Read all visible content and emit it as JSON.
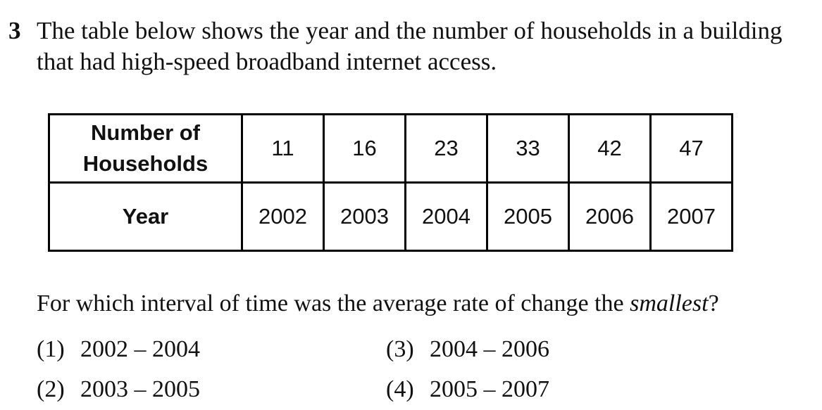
{
  "question": {
    "number": "3",
    "text": "The table below shows the year and the number of households in a building that had high-speed broadband internet access."
  },
  "table": {
    "row_households_label_line1": "Number of",
    "row_households_label_line2": "Households",
    "row_year_label": "Year",
    "households": [
      "11",
      "16",
      "23",
      "33",
      "42",
      "47"
    ],
    "years": [
      "2002",
      "2003",
      "2004",
      "2005",
      "2006",
      "2007"
    ]
  },
  "prompt": {
    "before": "For which interval of time was the average rate of change the ",
    "emphasis": "smallest",
    "after": "?"
  },
  "choices": [
    {
      "number": "(1)",
      "text": "2002 – 2004"
    },
    {
      "number": "(2)",
      "text": "2003 – 2005"
    },
    {
      "number": "(3)",
      "text": "2004 – 2006"
    },
    {
      "number": "(4)",
      "text": "2005 – 2007"
    }
  ]
}
